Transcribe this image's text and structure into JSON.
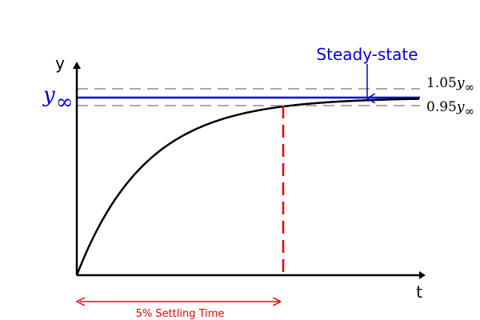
{
  "diagram": {
    "y_axis_label": "y",
    "x_axis_label": "t",
    "steady_value_symbol": "y",
    "steady_value_subscript": "∞",
    "upper_band": {
      "coefficient": "1.05",
      "symbol": "y",
      "subscript": "∞"
    },
    "lower_band": {
      "coefficient": "0.95",
      "symbol": "y",
      "subscript": "∞"
    },
    "steady_state_label": "Steady-state",
    "settling_time_label": "5% Settling Time",
    "tolerance_band_fraction": 0.05,
    "colors": {
      "axes": "#000000",
      "response": "#000000",
      "steady_state": "#0000dd",
      "tolerance": "#aaaaaa",
      "settling": "#ee0000"
    }
  }
}
